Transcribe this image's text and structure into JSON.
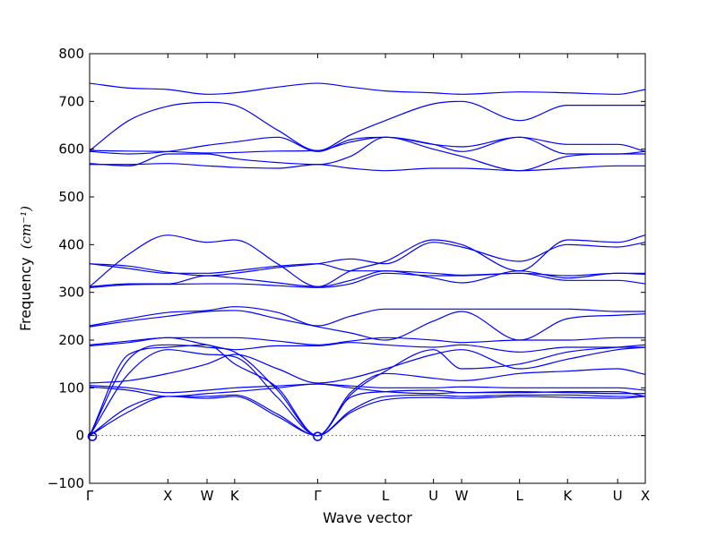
{
  "chart_data": {
    "type": "line",
    "title": "",
    "xlabel": "Wave vector",
    "ylabel": "Frequency",
    "ylabel_unit": "(cm⁻¹)",
    "ylim": [
      -100,
      800
    ],
    "yticks": [
      -100,
      0,
      100,
      200,
      300,
      400,
      500,
      600,
      700,
      800
    ],
    "xlim": [
      0,
      10.65
    ],
    "xticks": [
      {
        "label": "Γ",
        "x": 0
      },
      {
        "label": "X",
        "x": 1.5
      },
      {
        "label": "W",
        "x": 2.25
      },
      {
        "label": "K",
        "x": 2.78
      },
      {
        "label": "Γ",
        "x": 4.37
      },
      {
        "label": "L",
        "x": 5.67
      },
      {
        "label": "U",
        "x": 6.59
      },
      {
        "label": "W",
        "x": 7.13
      },
      {
        "label": "L",
        "x": 8.24
      },
      {
        "label": "K",
        "x": 9.16
      },
      {
        "label": "U",
        "x": 10.12
      },
      {
        "label": "X",
        "x": 10.65
      }
    ],
    "zero_line": {
      "y": 0,
      "style": "dotted"
    },
    "line_color": "#0000ff",
    "grid": false,
    "series": [
      {
        "x": [
          0,
          0.75,
          1.5,
          2.25,
          2.78,
          3.6,
          4.37,
          5.0,
          5.67,
          6.59,
          7.13,
          8.24,
          9.16,
          10.12,
          10.65
        ],
        "values": [
          0,
          50,
          82,
          78,
          82,
          40,
          0,
          48,
          75,
          80,
          78,
          82,
          80,
          78,
          82
        ]
      },
      {
        "x": [
          0,
          0.75,
          1.5,
          2.25,
          2.78,
          3.6,
          4.37,
          5.0,
          5.67,
          6.59,
          7.13,
          8.24,
          9.16,
          10.12,
          10.65
        ],
        "values": [
          0,
          60,
          82,
          82,
          85,
          45,
          0,
          52,
          82,
          85,
          82,
          85,
          85,
          82,
          82
        ]
      },
      {
        "x": [
          0,
          0.75,
          1.5,
          2.25,
          2.78,
          3.6,
          4.37,
          5.0,
          5.67,
          6.59,
          7.13,
          8.24,
          9.16,
          10.12,
          10.65
        ],
        "values": [
          0,
          130,
          180,
          170,
          165,
          80,
          0,
          80,
          92,
          95,
          90,
          92,
          90,
          88,
          88
        ]
      },
      {
        "x": [
          0,
          0.75,
          1.5,
          2.25,
          2.78,
          3.6,
          4.37,
          5.0,
          5.67,
          6.59,
          7.13,
          8.24,
          9.16,
          10.12,
          10.65
        ],
        "values": [
          0,
          160,
          190,
          185,
          175,
          95,
          0,
          90,
          130,
          120,
          115,
          130,
          135,
          140,
          128
        ]
      },
      {
        "x": [
          0,
          0.75,
          1.5,
          2.25,
          2.78,
          3.6,
          4.37,
          5.0,
          5.67,
          6.59,
          7.13,
          8.24,
          9.16,
          10.12,
          10.65
        ],
        "values": [
          0,
          170,
          185,
          190,
          150,
          100,
          0,
          85,
          135,
          180,
          140,
          150,
          175,
          185,
          190
        ]
      },
      {
        "x": [
          0,
          0.75,
          1.5,
          2.25,
          2.78,
          3.6,
          4.37,
          5.0,
          5.67,
          6.59,
          7.13,
          8.24,
          9.16,
          10.12,
          10.65
        ],
        "values": [
          102,
          95,
          82,
          88,
          92,
          100,
          108,
          100,
          92,
          88,
          90,
          90,
          92,
          92,
          82
        ]
      },
      {
        "x": [
          0,
          0.75,
          1.5,
          2.25,
          2.78,
          3.6,
          4.37,
          5.0,
          5.67,
          6.59,
          7.13,
          8.24,
          9.16,
          10.12,
          10.65
        ],
        "values": [
          105,
          100,
          90,
          95,
          100,
          104,
          108,
          104,
          100,
          100,
          102,
          100,
          100,
          100,
          95
        ]
      },
      {
        "x": [
          0,
          0.75,
          1.5,
          2.25,
          2.78,
          3.6,
          4.37,
          5.0,
          5.67,
          6.59,
          7.13,
          8.24,
          9.16,
          10.12,
          10.65
        ],
        "values": [
          110,
          115,
          130,
          150,
          170,
          140,
          110,
          120,
          140,
          170,
          180,
          140,
          160,
          180,
          185
        ]
      },
      {
        "x": [
          0,
          0.75,
          1.5,
          2.25,
          2.78,
          3.6,
          4.37,
          5.0,
          5.67,
          6.59,
          7.13,
          8.24,
          9.16,
          10.12,
          10.65
        ],
        "values": [
          188,
          195,
          205,
          190,
          180,
          188,
          188,
          195,
          190,
          185,
          190,
          175,
          185,
          185,
          185
        ]
      },
      {
        "x": [
          0,
          0.75,
          1.5,
          2.25,
          2.78,
          3.6,
          4.37,
          5.0,
          5.67,
          6.59,
          7.13,
          8.24,
          9.16,
          10.12,
          10.65
        ],
        "values": [
          190,
          198,
          205,
          205,
          205,
          198,
          190,
          198,
          205,
          200,
          195,
          200,
          200,
          205,
          205
        ]
      },
      {
        "x": [
          0,
          0.75,
          1.5,
          2.25,
          2.78,
          3.6,
          4.37,
          5.0,
          5.67,
          6.59,
          7.13,
          8.24,
          9.16,
          10.12,
          10.65
        ],
        "values": [
          228,
          240,
          250,
          260,
          262,
          245,
          228,
          215,
          200,
          240,
          260,
          200,
          245,
          252,
          255
        ]
      },
      {
        "x": [
          0,
          0.75,
          1.5,
          2.25,
          2.78,
          3.6,
          4.37,
          5.0,
          5.67,
          6.59,
          7.13,
          8.24,
          9.16,
          10.12,
          10.65
        ],
        "values": [
          230,
          245,
          258,
          262,
          270,
          258,
          230,
          250,
          265,
          265,
          265,
          265,
          265,
          260,
          260
        ]
      },
      {
        "x": [
          0,
          0.75,
          1.5,
          2.25,
          2.78,
          3.6,
          4.37,
          5.0,
          5.67,
          6.59,
          7.13,
          8.24,
          9.16,
          10.12,
          10.65
        ],
        "values": [
          310,
          316,
          317,
          318,
          318,
          314,
          310,
          318,
          340,
          335,
          335,
          340,
          325,
          325,
          318
        ]
      },
      {
        "x": [
          0,
          0.75,
          1.5,
          2.25,
          2.78,
          3.6,
          4.37,
          5.0,
          5.67,
          6.59,
          7.13,
          8.24,
          9.16,
          10.12,
          10.65
        ],
        "values": [
          312,
          318,
          318,
          335,
          330,
          320,
          312,
          325,
          345,
          340,
          336,
          340,
          335,
          340,
          338
        ]
      },
      {
        "x": [
          0,
          0.75,
          1.5,
          2.25,
          2.78,
          3.6,
          4.37,
          5.0,
          5.67,
          6.59,
          7.13,
          8.24,
          9.16,
          10.12,
          10.65
        ],
        "values": [
          360,
          350,
          340,
          340,
          345,
          355,
          360,
          345,
          345,
          330,
          320,
          345,
          330,
          340,
          340
        ]
      },
      {
        "x": [
          0,
          0.75,
          1.5,
          2.25,
          2.78,
          3.6,
          4.37,
          5.0,
          5.67,
          6.59,
          7.13,
          8.24,
          9.16,
          10.12,
          10.65
        ],
        "values": [
          360,
          355,
          342,
          335,
          340,
          352,
          360,
          370,
          360,
          405,
          395,
          365,
          400,
          395,
          405
        ]
      },
      {
        "x": [
          0,
          0.75,
          1.5,
          2.25,
          2.78,
          3.6,
          4.37,
          5.0,
          5.67,
          6.59,
          7.13,
          8.24,
          9.16,
          10.12,
          10.65
        ],
        "values": [
          312,
          380,
          420,
          405,
          410,
          360,
          312,
          345,
          365,
          410,
          400,
          345,
          410,
          405,
          420
        ]
      },
      {
        "x": [
          0,
          0.75,
          1.5,
          2.25,
          2.78,
          3.6,
          4.37,
          5.0,
          5.67,
          6.59,
          7.13,
          8.24,
          9.16,
          10.12,
          10.65
        ],
        "values": [
          568,
          568,
          570,
          565,
          562,
          560,
          568,
          560,
          555,
          560,
          560,
          555,
          560,
          565,
          565
        ]
      },
      {
        "x": [
          0,
          0.75,
          1.5,
          2.25,
          2.78,
          3.6,
          4.37,
          5.0,
          5.67,
          6.59,
          7.13,
          8.24,
          9.16,
          10.12,
          10.65
        ],
        "values": [
          570,
          565,
          590,
          590,
          580,
          572,
          568,
          585,
          625,
          600,
          585,
          555,
          585,
          590,
          590
        ]
      },
      {
        "x": [
          0,
          0.75,
          1.5,
          2.25,
          2.78,
          3.6,
          4.37,
          5.0,
          5.67,
          6.59,
          7.13,
          8.24,
          9.16,
          10.12,
          10.65
        ],
        "values": [
          595,
          590,
          595,
          608,
          615,
          625,
          595,
          620,
          625,
          610,
          595,
          625,
          590,
          590,
          595
        ]
      },
      {
        "x": [
          0,
          0.75,
          1.5,
          2.25,
          2.78,
          3.6,
          4.37,
          5.0,
          5.67,
          6.59,
          7.13,
          8.24,
          9.16,
          10.12,
          10.65
        ],
        "values": [
          597,
          596,
          595,
          592,
          593,
          596,
          597,
          615,
          625,
          610,
          605,
          625,
          610,
          610,
          595
        ]
      },
      {
        "x": [
          0,
          0.75,
          1.5,
          2.25,
          2.78,
          3.6,
          4.37,
          5.0,
          5.67,
          6.59,
          7.13,
          8.24,
          9.16,
          10.12,
          10.65
        ],
        "values": [
          597,
          660,
          690,
          698,
          692,
          640,
          597,
          630,
          660,
          695,
          700,
          660,
          692,
          692,
          692
        ]
      },
      {
        "x": [
          0,
          0.75,
          1.5,
          2.25,
          2.78,
          3.6,
          4.37,
          5.0,
          5.67,
          6.59,
          7.13,
          8.24,
          9.16,
          10.12,
          10.65
        ],
        "values": [
          738,
          728,
          725,
          715,
          718,
          730,
          738,
          730,
          722,
          718,
          715,
          720,
          718,
          715,
          725
        ]
      }
    ]
  }
}
